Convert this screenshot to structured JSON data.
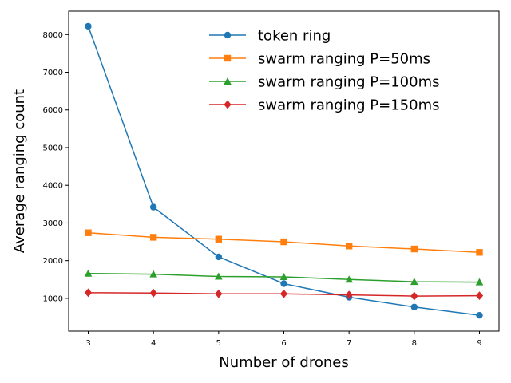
{
  "chart_data": {
    "type": "line",
    "title": "",
    "xlabel": "Number of drones",
    "ylabel": "Average ranging count",
    "x": [
      3,
      4,
      5,
      6,
      7,
      8,
      9
    ],
    "xlim": [
      2.7,
      9.3
    ],
    "ylim": [
      130,
      8620
    ],
    "xticks": [
      3,
      4,
      5,
      6,
      7,
      8,
      9
    ],
    "yticks": [
      1000,
      2000,
      3000,
      4000,
      5000,
      6000,
      7000,
      8000
    ],
    "grid": false,
    "legend_position": "top-right",
    "series": [
      {
        "name": "token ring",
        "color": "#1f77b4",
        "marker": "circle",
        "values": [
          8220,
          3420,
          2100,
          1390,
          1030,
          770,
          550
        ]
      },
      {
        "name": "swarm ranging P=50ms",
        "color": "#ff7f0e",
        "marker": "square",
        "values": [
          2740,
          2620,
          2570,
          2500,
          2390,
          2310,
          2220
        ]
      },
      {
        "name": "swarm ranging P=100ms",
        "color": "#2ca02c",
        "marker": "triangle",
        "values": [
          1660,
          1640,
          1580,
          1570,
          1500,
          1440,
          1430
        ]
      },
      {
        "name": "swarm ranging P=150ms",
        "color": "#d62728",
        "marker": "diamond",
        "values": [
          1150,
          1140,
          1120,
          1120,
          1090,
          1060,
          1070
        ]
      }
    ]
  }
}
